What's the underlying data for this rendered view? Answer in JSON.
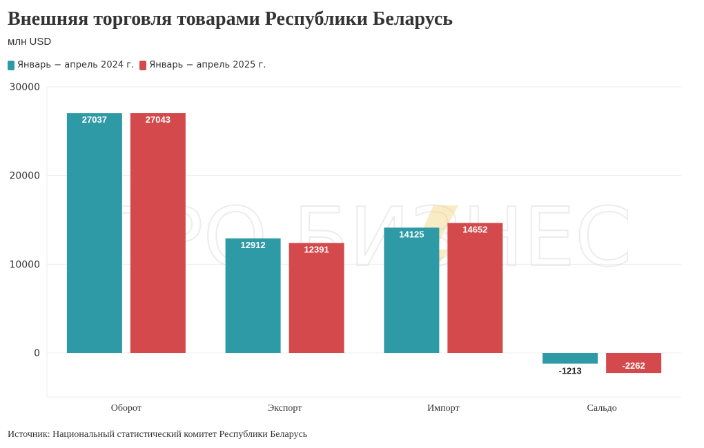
{
  "title": "Внешняя торговля товарами Республики Беларусь",
  "subtitle": "млн USD",
  "source": "Источник: Национальный статистический комитет Республики Беларусь",
  "watermark": "ПРО БИЗНЕС",
  "colors": {
    "series_2024": "#2e9aa6",
    "series_2025": "#d44a4c",
    "grid": "#ececec"
  },
  "chart_data": {
    "type": "bar",
    "title": "Внешняя торговля товарами Республики Беларусь",
    "subtitle": "млн USD",
    "categories": [
      "Оборот",
      "Экспорт",
      "Импорт",
      "Сальдо"
    ],
    "series": [
      {
        "name": "Январь − апрель 2024 г.",
        "values": [
          27037,
          12912,
          14125,
          -1213
        ]
      },
      {
        "name": "Январь − апрель 2025 г.",
        "values": [
          27043,
          12391,
          14652,
          -2262
        ]
      }
    ],
    "yticks": [
      "0",
      "10000",
      "20000",
      "30000"
    ],
    "ylim": [
      -5000,
      30000
    ],
    "grid": true,
    "legend": "top-left"
  }
}
